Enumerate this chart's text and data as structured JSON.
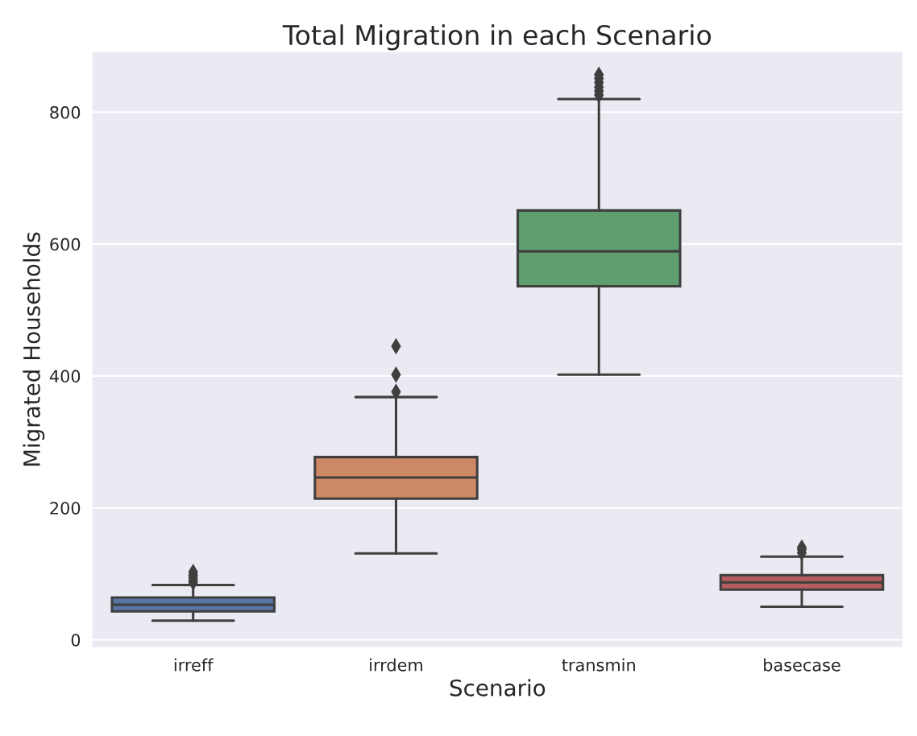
{
  "chart_data": {
    "type": "box",
    "title": "Total Migration in each Scenario",
    "xlabel": "Scenario",
    "ylabel": "Migrated Households",
    "categories": [
      "irreff",
      "irrdem",
      "transmin",
      "basecase"
    ],
    "colors": [
      "#5975a4",
      "#cc8963",
      "#5f9e6e",
      "#b55d60"
    ],
    "boxes": [
      {
        "low": 29,
        "q1": 43,
        "median": 53,
        "q3": 64,
        "high": 83,
        "outliers": [
          87,
          90,
          94,
          98,
          103
        ]
      },
      {
        "low": 131,
        "q1": 214,
        "median": 246,
        "q3": 277,
        "high": 368,
        "outliers": [
          376,
          402,
          445
        ]
      },
      {
        "low": 402,
        "q1": 536,
        "median": 589,
        "q3": 651,
        "high": 820,
        "outliers": [
          826,
          832,
          838,
          845,
          851,
          857
        ]
      },
      {
        "low": 50,
        "q1": 76,
        "median": 87,
        "q3": 98,
        "high": 126,
        "outliers": [
          132,
          137,
          140
        ]
      }
    ],
    "ylim": [
      -12,
      892
    ],
    "yticks": [
      0,
      200,
      400,
      600,
      800
    ],
    "grid": "y",
    "marker": "diamond"
  }
}
